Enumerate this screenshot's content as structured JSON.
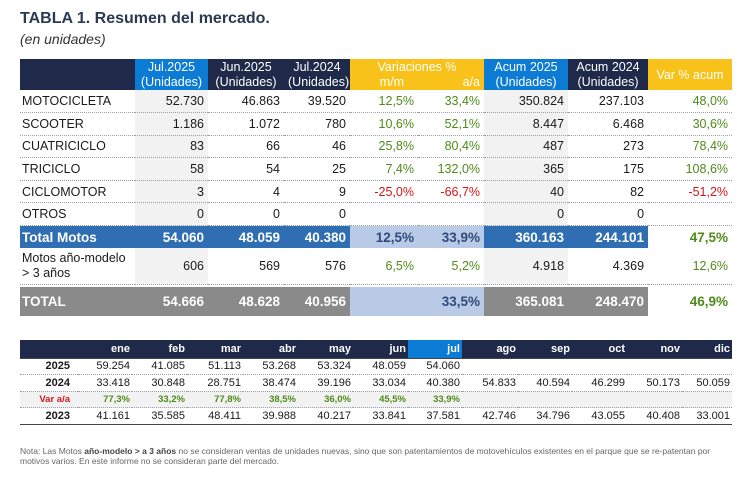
{
  "title": "TABLA 1. Resumen del mercado.",
  "subtitle": "(en unidades)",
  "header": {
    "c1": [
      "Jul.2025",
      "(Unidades)"
    ],
    "c2": [
      "Jun.2025",
      "(Unidades)"
    ],
    "c3": [
      "Jul.2024",
      "(Unidades)"
    ],
    "var": "Variaciones %",
    "mm": "m/m",
    "aa": "a/a",
    "c6": [
      "Acum 2025",
      "(Unidades)"
    ],
    "c7": [
      "Acum 2024",
      "(Unidades)"
    ],
    "c8": "Var % acum"
  },
  "rows": [
    {
      "label": "MOTOCICLETA",
      "jul25": "52.730",
      "jun25": "46.863",
      "jul24": "39.520",
      "mm": "12,5%",
      "aa": "33,4%",
      "acum25": "350.824",
      "acum24": "237.103",
      "vacum": "48,0%"
    },
    {
      "label": "SCOOTER",
      "jul25": "1.186",
      "jun25": "1.072",
      "jul24": "780",
      "mm": "10,6%",
      "aa": "52,1%",
      "acum25": "8.447",
      "acum24": "6.468",
      "vacum": "30,6%"
    },
    {
      "label": "CUATRICICLO",
      "jul25": "83",
      "jun25": "66",
      "jul24": "46",
      "mm": "25,8%",
      "aa": "80,4%",
      "acum25": "487",
      "acum24": "273",
      "vacum": "78,4%"
    },
    {
      "label": "TRICICLO",
      "jul25": "58",
      "jun25": "54",
      "jul24": "25",
      "mm": "7,4%",
      "aa": "132,0%",
      "acum25": "365",
      "acum24": "175",
      "vacum": "108,6%"
    },
    {
      "label": "CICLOMOTOR",
      "jul25": "3",
      "jun25": "4",
      "jul24": "9",
      "mm": "-25,0%",
      "aa": "-66,7%",
      "acum25": "40",
      "acum24": "82",
      "vacum": "-51,2%"
    },
    {
      "label": "OTROS",
      "jul25": "0",
      "jun25": "0",
      "jul24": "0",
      "mm": "",
      "aa": "",
      "acum25": "0",
      "acum24": "0",
      "vacum": ""
    }
  ],
  "total_motos": {
    "label": "Total Motos",
    "jul25": "54.060",
    "jun25": "48.059",
    "jul24": "40.380",
    "mm": "12,5%",
    "aa": "33,9%",
    "acum25": "360.163",
    "acum24": "244.101",
    "vacum": "47,5%"
  },
  "motos_modelo": {
    "label1": "Motos año-modelo",
    "label2": "> 3 años",
    "jul25": "606",
    "jun25": "569",
    "jul24": "576",
    "mm": "6,5%",
    "aa": "5,2%",
    "acum25": "4.918",
    "acum24": "4.369",
    "vacum": "12,6%"
  },
  "grand_total": {
    "label": "TOTAL",
    "jul25": "54.666",
    "jun25": "48.628",
    "jul24": "40.956",
    "mm": "",
    "aa": "33,5%",
    "acum25": "365.081",
    "acum24": "248.470",
    "vacum": "46,9%"
  },
  "monthly": {
    "months": [
      "ene",
      "feb",
      "mar",
      "abr",
      "may",
      "jun",
      "jul",
      "ago",
      "sep",
      "oct",
      "nov",
      "dic"
    ],
    "y2025": {
      "label": "2025",
      "values": [
        "59.254",
        "41.085",
        "51.113",
        "53.268",
        "53.324",
        "48.059",
        "54.060",
        "",
        "",
        "",
        "",
        ""
      ]
    },
    "y2024": {
      "label": "2024",
      "values": [
        "33.418",
        "30.848",
        "28.751",
        "38.474",
        "39.196",
        "33.034",
        "40.380",
        "54.833",
        "40.594",
        "46.299",
        "50.173",
        "50.059"
      ]
    },
    "var": {
      "label": "Var a/a",
      "values": [
        "77,3%",
        "33,2%",
        "77,8%",
        "38,5%",
        "36,0%",
        "45,5%",
        "33,9%",
        "",
        "",
        "",
        "",
        ""
      ]
    },
    "y2023": {
      "label": "2023",
      "values": [
        "41.161",
        "35.585",
        "48.411",
        "39.988",
        "40.217",
        "33.841",
        "37.581",
        "42.746",
        "34.796",
        "43.055",
        "40.408",
        "33.001"
      ]
    }
  },
  "note": {
    "prefix": "Nota: Las Motos ",
    "bold": "año-modelo > a 3 años",
    "suffix": " no se consideran ventas de unidades nuevas, sino que son patentamientos de motovehículos existentes en el parque que se re-patentan por motivos varios. En este informe no se consideran parte del mercado."
  },
  "colors": {
    "navy": "#1f2a4a",
    "blue": "#0b7bd4",
    "yellow": "#f8c21a",
    "total_blue": "#2f6eb3",
    "gray": "#8a8a8a",
    "green": "#4f8a1a",
    "red": "#d01818"
  }
}
